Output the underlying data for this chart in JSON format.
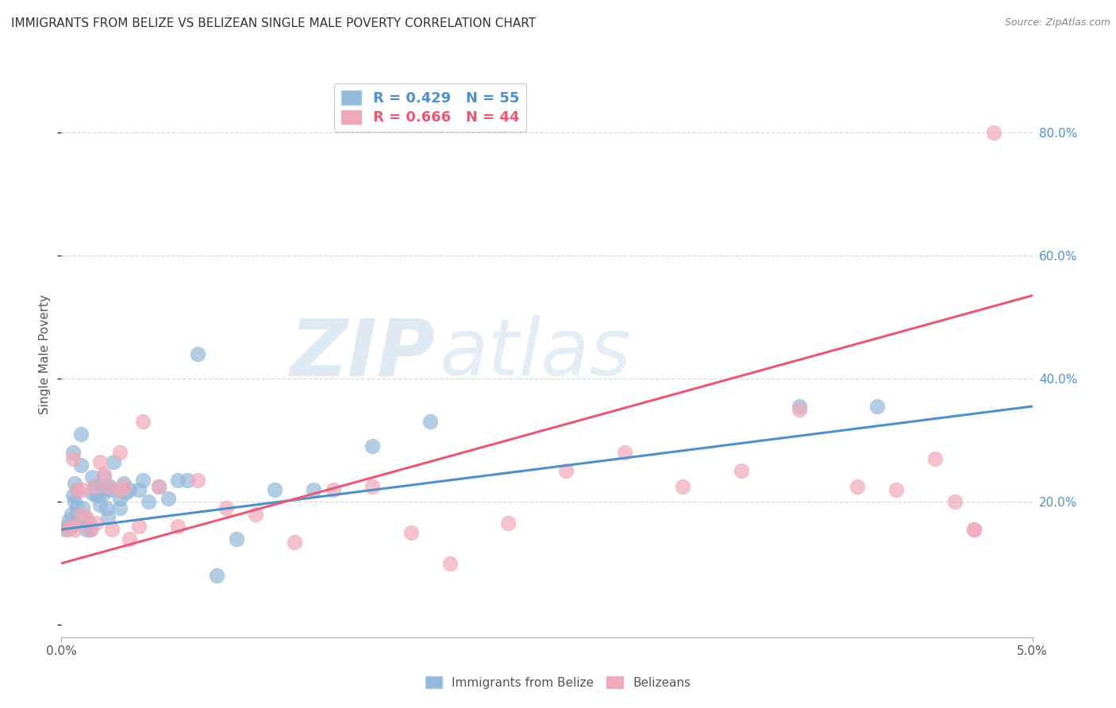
{
  "title": "IMMIGRANTS FROM BELIZE VS BELIZEAN SINGLE MALE POVERTY CORRELATION CHART",
  "source": "Source: ZipAtlas.com",
  "ylabel": "Single Male Poverty",
  "xlim": [
    0.0,
    0.05
  ],
  "ylim": [
    -0.02,
    0.9
  ],
  "blue_R": 0.429,
  "blue_N": 55,
  "pink_R": 0.666,
  "pink_N": 44,
  "blue_color": "#92b9d9",
  "pink_color": "#f0a8b8",
  "blue_line_color": "#5090c8",
  "pink_line_color": "#e85878",
  "legend_label_blue": "Immigrants from Belize",
  "legend_label_pink": "Belizeans",
  "watermark_zip": "ZIP",
  "watermark_atlas": "atlas",
  "grid_color": "#d0d8e8",
  "blue_points_x": [
    0.0002,
    0.0003,
    0.0004,
    0.0005,
    0.0005,
    0.0006,
    0.0006,
    0.0007,
    0.0007,
    0.0008,
    0.0008,
    0.0009,
    0.001,
    0.001,
    0.0011,
    0.0012,
    0.0013,
    0.0014,
    0.0015,
    0.0016,
    0.0016,
    0.0017,
    0.0018,
    0.0019,
    0.002,
    0.002,
    0.0021,
    0.0022,
    0.0022,
    0.0023,
    0.0024,
    0.0025,
    0.0026,
    0.0027,
    0.003,
    0.003,
    0.0032,
    0.0033,
    0.0035,
    0.004,
    0.0042,
    0.0045,
    0.005,
    0.0055,
    0.006,
    0.0065,
    0.007,
    0.008,
    0.009,
    0.011,
    0.013,
    0.016,
    0.019,
    0.038,
    0.042
  ],
  "blue_points_y": [
    0.155,
    0.16,
    0.17,
    0.16,
    0.18,
    0.21,
    0.28,
    0.2,
    0.23,
    0.19,
    0.22,
    0.17,
    0.26,
    0.31,
    0.19,
    0.175,
    0.155,
    0.165,
    0.155,
    0.24,
    0.215,
    0.225,
    0.21,
    0.21,
    0.195,
    0.22,
    0.22,
    0.215,
    0.24,
    0.19,
    0.175,
    0.225,
    0.22,
    0.265,
    0.19,
    0.205,
    0.23,
    0.215,
    0.22,
    0.22,
    0.235,
    0.2,
    0.225,
    0.205,
    0.235,
    0.235,
    0.44,
    0.08,
    0.14,
    0.22,
    0.22,
    0.29,
    0.33,
    0.355,
    0.355
  ],
  "pink_points_x": [
    0.0003,
    0.0005,
    0.0006,
    0.0007,
    0.0008,
    0.001,
    0.0011,
    0.0013,
    0.0015,
    0.0017,
    0.0018,
    0.002,
    0.0022,
    0.0024,
    0.0026,
    0.003,
    0.003,
    0.0032,
    0.0035,
    0.004,
    0.0042,
    0.005,
    0.006,
    0.007,
    0.0085,
    0.01,
    0.012,
    0.014,
    0.016,
    0.018,
    0.02,
    0.023,
    0.026,
    0.029,
    0.032,
    0.035,
    0.038,
    0.041,
    0.043,
    0.045,
    0.046,
    0.047,
    0.048,
    0.047
  ],
  "pink_points_y": [
    0.155,
    0.16,
    0.27,
    0.155,
    0.22,
    0.18,
    0.22,
    0.175,
    0.155,
    0.225,
    0.165,
    0.265,
    0.245,
    0.225,
    0.155,
    0.22,
    0.28,
    0.225,
    0.14,
    0.16,
    0.33,
    0.225,
    0.16,
    0.235,
    0.19,
    0.18,
    0.135,
    0.22,
    0.225,
    0.15,
    0.1,
    0.165,
    0.25,
    0.28,
    0.225,
    0.25,
    0.35,
    0.225,
    0.22,
    0.27,
    0.2,
    0.155,
    0.8,
    0.155
  ],
  "blue_trend_x": [
    0.0,
    0.05
  ],
  "blue_trend_y": [
    0.155,
    0.355
  ],
  "pink_trend_x": [
    0.0,
    0.05
  ],
  "pink_trend_y": [
    0.1,
    0.535
  ]
}
